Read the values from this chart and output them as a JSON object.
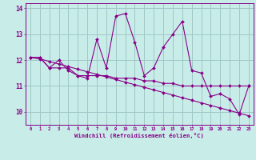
{
  "xlabel": "Windchill (Refroidissement éolien,°C)",
  "bg_color": "#c8ece8",
  "grid_color": "#a0c8c8",
  "line_color": "#880088",
  "x_ticks": [
    0,
    1,
    2,
    3,
    4,
    5,
    6,
    7,
    8,
    9,
    10,
    11,
    12,
    13,
    14,
    15,
    16,
    17,
    18,
    19,
    20,
    21,
    22,
    23
  ],
  "ylim": [
    9.5,
    14.2
  ],
  "xlim": [
    -0.5,
    23.5
  ],
  "yticks": [
    10,
    11,
    12,
    13,
    14
  ],
  "series1": [
    12.1,
    12.1,
    11.7,
    12.0,
    11.6,
    11.4,
    11.3,
    12.8,
    11.7,
    13.7,
    13.8,
    12.7,
    11.4,
    11.7,
    12.5,
    13.0,
    13.5,
    11.6,
    11.5,
    10.6,
    10.7,
    10.5,
    9.9,
    11.0
  ],
  "series2": [
    12.1,
    12.1,
    11.7,
    11.7,
    11.7,
    11.4,
    11.4,
    11.4,
    11.4,
    11.3,
    11.3,
    11.3,
    11.2,
    11.2,
    11.1,
    11.1,
    11.0,
    11.0,
    11.0,
    11.0,
    11.0,
    11.0,
    11.0,
    11.0
  ],
  "series3": [
    12.1,
    12.05,
    11.95,
    11.85,
    11.75,
    11.65,
    11.55,
    11.45,
    11.35,
    11.25,
    11.15,
    11.05,
    10.95,
    10.85,
    10.75,
    10.65,
    10.55,
    10.45,
    10.35,
    10.25,
    10.15,
    10.05,
    9.95,
    9.85
  ]
}
